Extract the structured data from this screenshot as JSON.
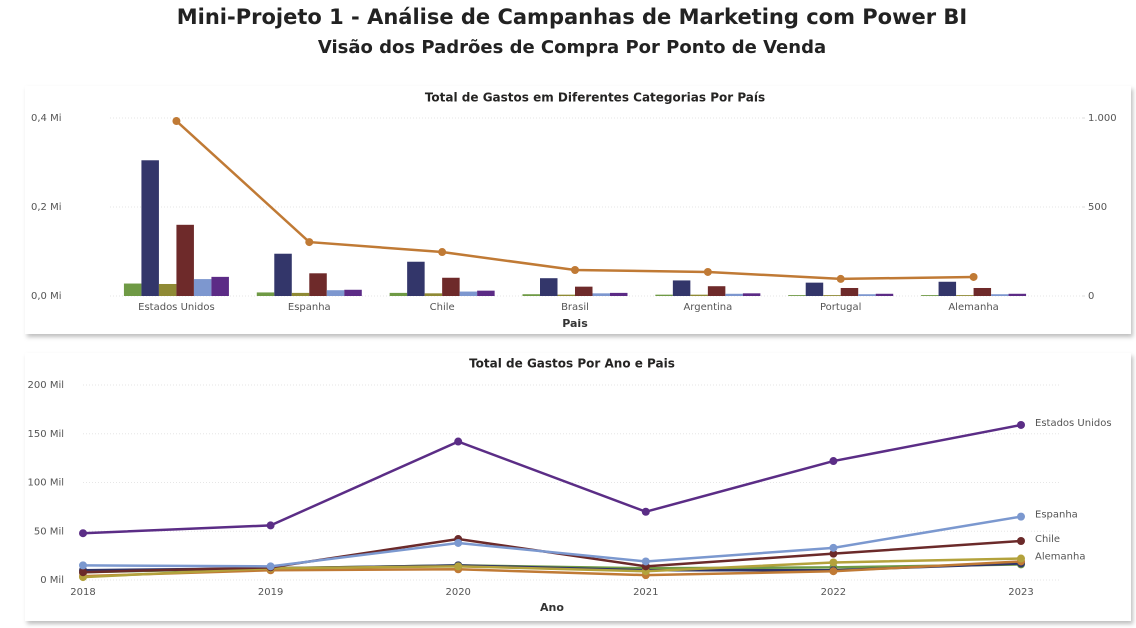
{
  "header": {
    "title": "Mini-Projeto 1 - Análise de Campanhas de Marketing com Power BI",
    "subtitle": "Visão dos Padrões de Compra Por Ponto de Venda"
  },
  "chart_data": [
    {
      "type": "bar",
      "title": "Total de Gastos em Diferentes Categorias Por País",
      "x_label": "Pais",
      "categories": [
        "Estados Unidos",
        "Espanha",
        "Chile",
        "Brasil",
        "Argentina",
        "Portugal",
        "Alemanha"
      ],
      "ylim": [
        0,
        0.4
      ],
      "yticks": [
        {
          "value": 0,
          "label": "0,0 Mi"
        },
        {
          "value": 0.2,
          "label": "0,2 Mi"
        },
        {
          "value": 0.4,
          "label": "0,4 Mi"
        }
      ],
      "y2lim": [
        0,
        1000
      ],
      "y2ticks": [
        0,
        500,
        {
          "value": 1000,
          "label": "1.000"
        }
      ],
      "grid": true,
      "series": [
        {
          "color": "#6f9a45",
          "values": [
            0.028,
            0.008,
            0.007,
            0.004,
            0.003,
            0.002,
            0.002
          ]
        },
        {
          "color": "#33366a",
          "values": [
            0.305,
            0.095,
            0.077,
            0.04,
            0.035,
            0.03,
            0.032
          ]
        },
        {
          "color": "#8f8a35",
          "values": [
            0.027,
            0.007,
            0.006,
            0.003,
            0.003,
            0.002,
            0.002
          ]
        },
        {
          "color": "#6e2a2a",
          "values": [
            0.16,
            0.051,
            0.041,
            0.021,
            0.022,
            0.018,
            0.018
          ]
        },
        {
          "color": "#7d97cf",
          "values": [
            0.038,
            0.013,
            0.01,
            0.006,
            0.005,
            0.004,
            0.004
          ]
        },
        {
          "color": "#5c2b86",
          "values": [
            0.043,
            0.014,
            0.012,
            0.007,
            0.006,
            0.005,
            0.005
          ]
        },
        {
          "type": "line",
          "axis": "y2",
          "color": "#c07a35",
          "values": [
            983,
            303,
            247,
            146,
            135,
            96,
            107
          ]
        }
      ]
    },
    {
      "type": "line",
      "title": "Total de Gastos Por Ano e Pais",
      "x_label": "Ano",
      "categories": [
        "2018",
        "2019",
        "2020",
        "2021",
        "2022",
        "2023"
      ],
      "ylim": [
        0,
        200
      ],
      "yticks": [
        {
          "value": 0,
          "label": "0 Mil"
        },
        {
          "value": 50,
          "label": "50 Mil"
        },
        {
          "value": 100,
          "label": "100 Mil"
        },
        {
          "value": 150,
          "label": "150 Mil"
        },
        {
          "value": 200,
          "label": "200 Mil"
        }
      ],
      "grid": true,
      "series": [
        {
          "color": "#6f9a45",
          "values": [
            8,
            12,
            15,
            12,
            13,
            16
          ]
        },
        {
          "color": "#2f3569",
          "values": [
            10,
            12,
            15,
            10,
            10,
            17
          ]
        },
        {
          "color": "#c07a35",
          "values": [
            4,
            10,
            11,
            5,
            9,
            19
          ]
        },
        {
          "name": "Alemanha",
          "color": "#b3a23c",
          "values": [
            3,
            12,
            14,
            9,
            18,
            22
          ]
        },
        {
          "name": "Chile",
          "color": "#6b2a2a",
          "values": [
            8,
            13,
            42,
            14,
            27,
            40
          ]
        },
        {
          "name": "Espanha",
          "color": "#7b98cf",
          "values": [
            15,
            14,
            38,
            19,
            33,
            65
          ]
        },
        {
          "name": "Estados Unidos",
          "color": "#5b2d86",
          "values": [
            48,
            56,
            142,
            70,
            122,
            159
          ]
        }
      ]
    }
  ]
}
